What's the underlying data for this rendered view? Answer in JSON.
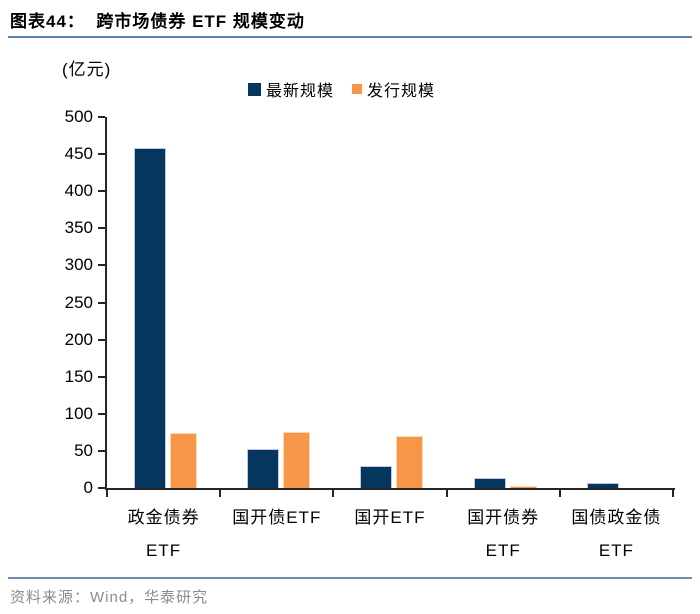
{
  "title": "图表44：  跨市场债券 ETF 规模变动",
  "unit_label": "(亿元)",
  "source_note": "资料来源：Wind，华泰研究",
  "colors": {
    "navy": "#04365E",
    "orange": "#F79648",
    "title_rule_blue": "#5B84B2",
    "source_rule_blue": "#6E8DAC",
    "axis": "#262626",
    "source_text_gray": "#8C8C8C"
  },
  "chart_data": {
    "type": "bar",
    "title": "跨市场债券 ETF 规模变动",
    "unit": "亿元",
    "categories": [
      "政金债券ETF",
      "国开债ETF",
      "国开ETF",
      "国开债券ETF",
      "国债政金债ETF"
    ],
    "category_lines": [
      [
        "政金债券",
        "ETF"
      ],
      [
        "国开债ETF"
      ],
      [
        "国开ETF"
      ],
      [
        "国开债券",
        "ETF"
      ],
      [
        "国债政金债",
        "ETF"
      ]
    ],
    "series": [
      {
        "name": "最新规模",
        "color": "#04365E",
        "values": [
          458,
          53,
          30,
          13,
          7
        ]
      },
      {
        "name": "发行规模",
        "color": "#F79648",
        "values": [
          74,
          76,
          70,
          3,
          0
        ]
      }
    ],
    "xlabel": "",
    "ylabel": "(亿元)",
    "ylim": [
      0,
      500
    ],
    "yticks": [
      0,
      50,
      100,
      150,
      200,
      250,
      300,
      350,
      400,
      450,
      500
    ],
    "grid": false,
    "legend_position": "top"
  }
}
